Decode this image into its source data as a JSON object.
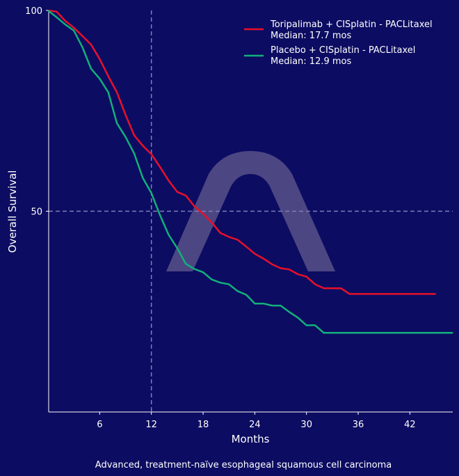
{
  "chart_data": {
    "type": "line",
    "title": "",
    "xlabel": "Months",
    "ylabel": "Overall Survival",
    "caption": "Advanced, treatment-naïve esophageal squamous cell carcinoma",
    "xlim": [
      0,
      47
    ],
    "ylim": [
      0,
      100
    ],
    "x_ticks": [
      6,
      12,
      18,
      24,
      30,
      36,
      42
    ],
    "y_ticks": [
      50,
      100
    ],
    "reference_lines": {
      "x": 12,
      "y": 50
    },
    "legend_position": "top-right",
    "grid": false,
    "series": [
      {
        "name": "Toripalimab + CISplatin - PACLitaxel",
        "median_label": "Median: 17.7 mos",
        "color": "#e8102a",
        "x": [
          0,
          1,
          2,
          3,
          4,
          5,
          6,
          7,
          8,
          9,
          10,
          11,
          12,
          13,
          14,
          15,
          16,
          17,
          18,
          19,
          20,
          21,
          22,
          23,
          24,
          25,
          26,
          27,
          28,
          29,
          30,
          31,
          32,
          34,
          35,
          45
        ],
        "y": [
          100,
          99.7,
          97.4,
          95.7,
          93.6,
          91.5,
          87.9,
          83.6,
          79.6,
          74,
          68.9,
          66.3,
          64.2,
          61,
          57.6,
          54.8,
          53.9,
          51.2,
          49.4,
          47.2,
          44.6,
          43.6,
          42.9,
          41.2,
          39.4,
          38.2,
          36.8,
          35.8,
          35.5,
          34.3,
          33.7,
          31.8,
          30.8,
          30.8,
          29.4,
          29.4
        ]
      },
      {
        "name": "Placebo + CISplatin - PACLitaxel",
        "median_label": "Median: 12.9 mos",
        "color": "#12b07a",
        "x": [
          0,
          1,
          2,
          3,
          4,
          5,
          6,
          7,
          8,
          9,
          10,
          11,
          12,
          13,
          14,
          15,
          16,
          17,
          18,
          19,
          20,
          21,
          22,
          23,
          24,
          25,
          26,
          27,
          28,
          29,
          30,
          31,
          32,
          47
        ],
        "y": [
          100,
          98.3,
          96.5,
          95,
          90.8,
          85.5,
          83,
          79.6,
          71.9,
          68.5,
          64.4,
          58.3,
          54.5,
          49,
          44.1,
          40.8,
          36.9,
          35.6,
          34.8,
          33,
          32.2,
          31.8,
          30.1,
          29.2,
          27,
          27,
          26.5,
          26.5,
          24.9,
          23.5,
          21.6,
          21.6,
          19.7,
          19.7
        ]
      }
    ]
  },
  "colors": {
    "background": "#0c0c62",
    "reference_line": "#7f7fb8",
    "watermark": "#4c4683"
  }
}
